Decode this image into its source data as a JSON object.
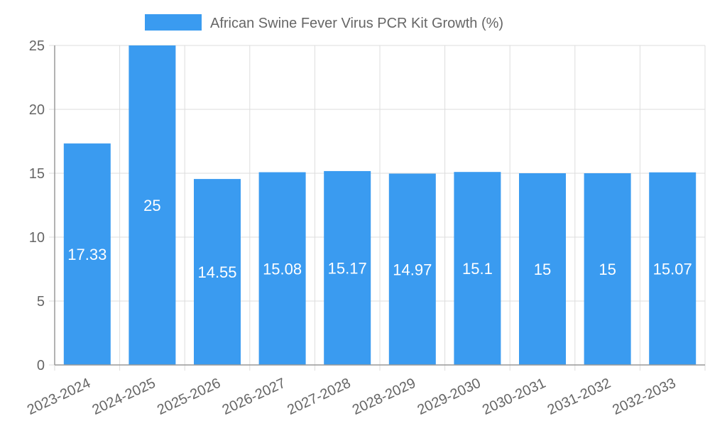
{
  "chart_data": {
    "type": "bar",
    "title": "",
    "xlabel": "",
    "ylabel": "",
    "categories": [
      "2023-2024",
      "2024-2025",
      "2025-2026",
      "2026-2027",
      "2027-2028",
      "2028-2029",
      "2029-2030",
      "2030-2031",
      "2031-2032",
      "2032-2033"
    ],
    "series": [
      {
        "name": "African Swine Fever Virus PCR Kit Growth (%)",
        "values": [
          17.33,
          25,
          14.55,
          15.08,
          15.17,
          14.97,
          15.1,
          15,
          15,
          15.07
        ]
      }
    ],
    "data_labels": [
      "17.33",
      "25",
      "14.55",
      "15.08",
      "15.17",
      "14.97",
      "15.1",
      "15",
      "15",
      "15.07"
    ],
    "y_ticks": [
      "0",
      "5",
      "10",
      "15",
      "20",
      "25"
    ],
    "ylim": [
      0,
      25
    ],
    "grid": true,
    "legend_position": "top",
    "colors": {
      "bar": "#3a9bf0",
      "grid": "#dddddd",
      "axis": "#999999",
      "text": "#666666",
      "data_label": "#ffffff"
    }
  }
}
